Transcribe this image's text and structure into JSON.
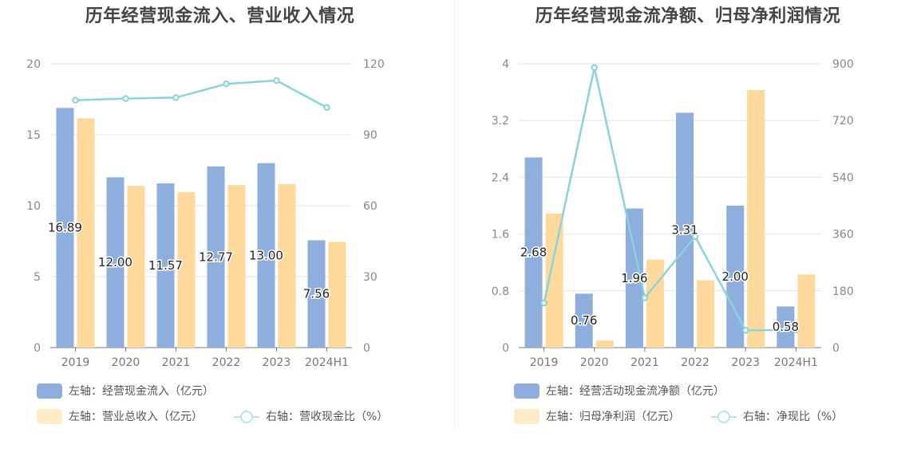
{
  "chart_data": [
    {
      "type": "bar",
      "title": "历年经营现金流入、营业收入情况",
      "categories": [
        "2019",
        "2020",
        "2021",
        "2022",
        "2023",
        "2024H1"
      ],
      "left_axis": {
        "ticks": [
          "0",
          "5",
          "10",
          "15",
          "20"
        ],
        "min": 0,
        "max": 20
      },
      "right_axis": {
        "ticks": [
          "0",
          "30",
          "60",
          "90",
          "120"
        ],
        "min": 0,
        "max": 120
      },
      "series": [
        {
          "name": "左轴：经营现金流入（亿元）",
          "kind": "bar",
          "axis": "left",
          "color": "#8eaedd",
          "values": [
            16.89,
            12.0,
            11.57,
            12.77,
            13.0,
            7.56
          ],
          "labels": [
            "16.89",
            "12.00",
            "11.57",
            "12.77",
            "13.00",
            "7.56"
          ]
        },
        {
          "name": "左轴：营业总收入（亿元）",
          "kind": "bar",
          "axis": "left",
          "color": "#ffd99c",
          "values": [
            16.15,
            11.4,
            10.95,
            11.45,
            11.52,
            7.45
          ]
        },
        {
          "name": "右轴：营收现金比（%）",
          "kind": "line",
          "axis": "right",
          "color": "#88d4d9",
          "values": [
            104.6,
            105.3,
            105.7,
            111.5,
            112.9,
            101.5
          ]
        }
      ]
    },
    {
      "type": "bar",
      "title": "历年经营现金流净额、归母净利润情况",
      "categories": [
        "2019",
        "2020",
        "2021",
        "2022",
        "2023",
        "2024H1"
      ],
      "left_axis": {
        "ticks": [
          "0",
          "0.8",
          "1.6",
          "2.4",
          "3.2",
          "4"
        ],
        "min": 0,
        "max": 4
      },
      "right_axis": {
        "ticks": [
          "0",
          "180",
          "360",
          "540",
          "720",
          "900"
        ],
        "min": 0,
        "max": 900
      },
      "series": [
        {
          "name": "左轴：经营活动现金流净额（亿元）",
          "kind": "bar",
          "axis": "left",
          "color": "#8eaedd",
          "values": [
            2.68,
            0.76,
            1.96,
            3.31,
            2.0,
            0.58
          ],
          "labels": [
            "2.68",
            "0.76",
            "1.96",
            "3.31",
            "2.00",
            "0.58"
          ]
        },
        {
          "name": "左轴：归母净利润（亿元）",
          "kind": "bar",
          "axis": "left",
          "color": "#ffd99c",
          "values": [
            1.89,
            0.1,
            1.24,
            0.95,
            3.63,
            1.03
          ]
        },
        {
          "name": "右轴：净现比（%）",
          "kind": "line",
          "axis": "right",
          "color": "#88d4d9",
          "values": [
            141,
            888,
            158,
            352,
            55,
            56
          ]
        }
      ]
    }
  ]
}
